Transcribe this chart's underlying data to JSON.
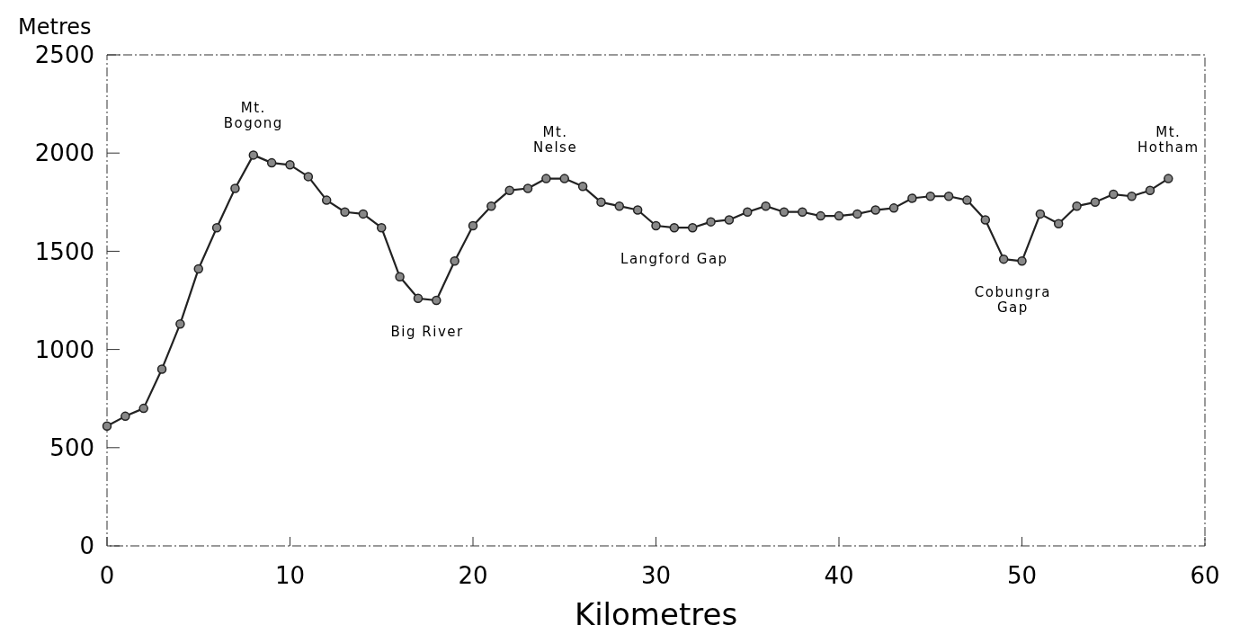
{
  "chart_data": {
    "type": "line",
    "xlabel": "Kilometres",
    "ylabel": "Metres",
    "x": [
      0,
      1,
      2,
      3,
      4,
      5,
      6,
      7,
      8,
      9,
      10,
      11,
      12,
      13,
      14,
      15,
      16,
      17,
      18,
      19,
      20,
      21,
      22,
      23,
      24,
      25,
      26,
      27,
      28,
      29,
      30,
      31,
      32,
      33,
      34,
      35,
      36,
      37,
      38,
      39,
      40,
      41,
      42,
      43,
      44,
      45,
      46,
      47,
      48,
      49,
      50,
      51,
      52,
      53,
      54,
      55,
      56,
      57,
      58
    ],
    "series": [
      {
        "color": "#222222",
        "values": [
          610,
          660,
          700,
          900,
          1130,
          1410,
          1620,
          1820,
          1990,
          1950,
          1940,
          1880,
          1760,
          1700,
          1690,
          1620,
          1370,
          1260,
          1250,
          1450,
          1630,
          1730,
          1810,
          1820,
          1870,
          1870,
          1830,
          1750,
          1730,
          1710,
          1630,
          1620,
          1620,
          1650,
          1660,
          1700,
          1730,
          1700,
          1700,
          1680,
          1680,
          1690,
          1710,
          1720,
          1770,
          1780,
          1780,
          1760,
          1660,
          1460,
          1450,
          1690,
          1640,
          1730,
          1750,
          1790,
          1780,
          1810,
          1870
        ]
      }
    ],
    "xlim": [
      0,
      60
    ],
    "xticks": [
      0,
      10,
      20,
      30,
      40,
      50,
      60
    ],
    "ylim": [
      0,
      2500
    ],
    "yticks": [
      0,
      500,
      1000,
      1500,
      2000,
      2500
    ],
    "marker": "circle",
    "line_style": "solid",
    "grid": false,
    "annotations": [
      {
        "text": "Mt.\nBogong",
        "x": 8,
        "y": 1990
      },
      {
        "text": "Big River",
        "x": 17.5,
        "y": 1250
      },
      {
        "text": "Mt.\nNelse",
        "x": 24.5,
        "y": 1870
      },
      {
        "text": "Langford Gap",
        "x": 31,
        "y": 1620
      },
      {
        "text": "Cobungra\nGap",
        "x": 49.5,
        "y": 1450
      },
      {
        "text": "Mt.\nHotham",
        "x": 58,
        "y": 1870
      }
    ]
  }
}
